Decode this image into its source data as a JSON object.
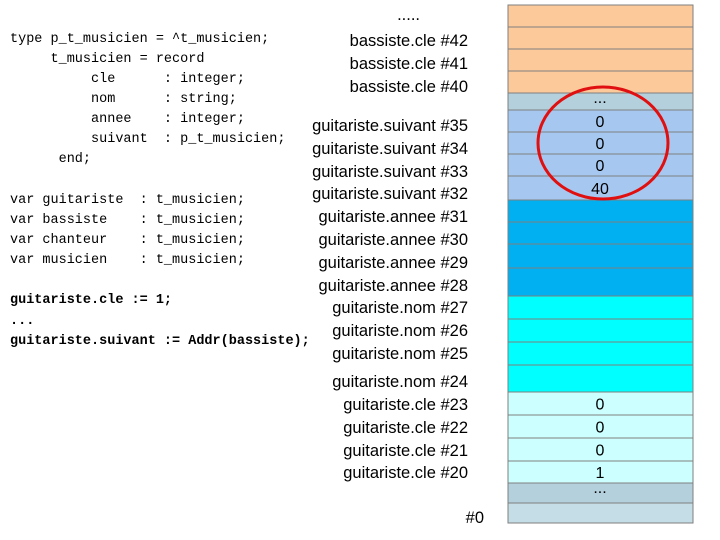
{
  "code": {
    "type_block": [
      "type p_t_musicien = ^t_musicien;",
      "     t_musicien = record",
      "          cle      : integer;",
      "          nom      : string;",
      "          annee    : integer;",
      "          suivant  : p_t_musicien;",
      "      end;"
    ],
    "var_block": [
      "var guitariste  : t_musicien;",
      "var bassiste    : t_musicien;",
      "var chanteur    : t_musicien;",
      "var musicien    : t_musicien;"
    ],
    "statements": [
      "guitariste.cle := 1;",
      "...",
      "guitariste.suivant := Addr(bassiste);"
    ]
  },
  "addresses": {
    "top": ".....",
    "labels": [
      "bassiste.cle #42",
      "bassiste.cle #41",
      "bassiste.cle #40",
      "guitariste.suivant #35",
      "guitariste.suivant #34",
      "guitariste.suivant #33",
      "guitariste.suivant #32",
      "guitariste.annee #31",
      "guitariste.annee #30",
      "guitariste.annee #29",
      "guitariste.annee #28",
      "guitariste.nom #27",
      "guitariste.nom #26",
      "guitariste.nom #25",
      "guitariste.nom #24",
      "guitariste.cle #23",
      "guitariste.cle #22",
      "guitariste.cle #21",
      "guitariste.cle #20"
    ],
    "bottom": "#0"
  },
  "memory": {
    "upper_dots": "...",
    "suivant_values": [
      "0",
      "0",
      "0",
      "40"
    ],
    "cle_values": [
      "0",
      "0",
      "0",
      "1"
    ],
    "lower_dots": "..."
  }
}
